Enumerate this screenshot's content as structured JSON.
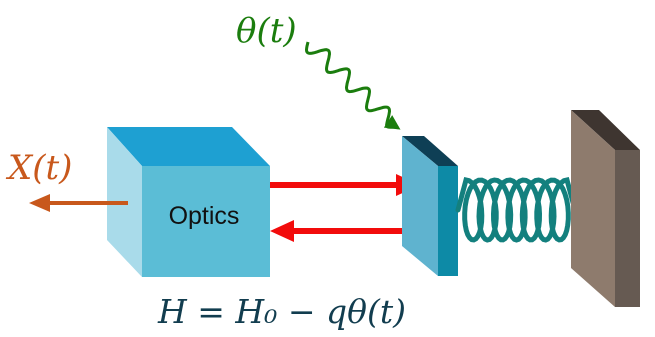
{
  "labels": {
    "theta": "θ(t)",
    "output": "X(t)",
    "optics": "Optics",
    "hamiltonian": "H = H₀ − qθ(t)"
  },
  "colors": {
    "theta": "#1b7d0e",
    "output": "#c8581c",
    "hamiltonian": "#123d4f",
    "beam": "#f20c0c",
    "spring": "#13807e",
    "cube_front": "#5bbdd6",
    "cube_top": "#1ea0d2",
    "cube_side": "#a9dbea",
    "mirror_face": "#5fb3cf",
    "mirror_side": "#0d8aa6",
    "mirror_top": "#0e3f55",
    "wall_front": "#8e7b6d",
    "wall_side": "#665a52",
    "wall_top": "#3e3530"
  },
  "icons": {
    "input_wave": "wavy-arrow-icon",
    "output_arrow": "left-arrow-icon",
    "beams": "double-arrow-icon",
    "spring": "coil-spring-icon"
  }
}
